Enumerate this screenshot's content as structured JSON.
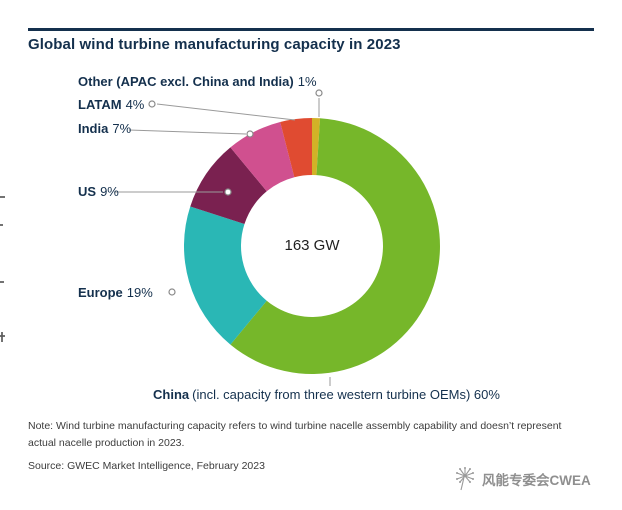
{
  "title": "Global wind turbine manufacturing capacity in 2023",
  "center_label": "163 GW",
  "labels": {
    "other": {
      "name": "Other (APAC excl. China and India)",
      "value": "1%"
    },
    "latam": {
      "name": "LATAM",
      "value": "4%"
    },
    "india": {
      "name": "India",
      "value": "7%"
    },
    "us": {
      "name": "US",
      "value": "9%"
    },
    "europe": {
      "name": "Europe",
      "value": "19%"
    },
    "china": {
      "name": "China",
      "rest": "(incl. capacity from three western turbine OEMs) 60%"
    }
  },
  "note": {
    "line1": "Note: Wind turbine manufacturing capacity refers to wind turbine nacelle assembly capability and doesn’t represent",
    "line2": "actual nacelle production in 2023."
  },
  "source": "Source: GWEC Market Intelligence, February 2023",
  "watermark": "风能专委会CWEA",
  "colors": {
    "navy_text": "#14304d",
    "china_green": "#76b72a",
    "europe_teal": "#2ab7b5",
    "us_plum": "#7a2150",
    "india_pink": "#d0508f",
    "latam_red": "#e04b31",
    "other_yellow": "#d2b227"
  },
  "chart_data": {
    "type": "pie",
    "subtype": "donut",
    "title": "Global wind turbine manufacturing capacity in 2023",
    "center_total": "163 GW",
    "total_value": 163,
    "units": "GW",
    "order": "clockwise-from-12-oclock",
    "legend_position": "labels-around-chart",
    "segments": [
      {
        "label": "Other (APAC excl. China and India)",
        "pct": 1,
        "color": "#d2b227"
      },
      {
        "label": "China (incl. capacity from three western turbine OEMs)",
        "pct": 60,
        "color": "#76b72a"
      },
      {
        "label": "Europe",
        "pct": 19,
        "color": "#2ab7b5"
      },
      {
        "label": "US",
        "pct": 9,
        "color": "#7a2150"
      },
      {
        "label": "India",
        "pct": 7,
        "color": "#d0508f"
      },
      {
        "label": "LATAM",
        "pct": 4,
        "color": "#e04b31"
      }
    ]
  }
}
